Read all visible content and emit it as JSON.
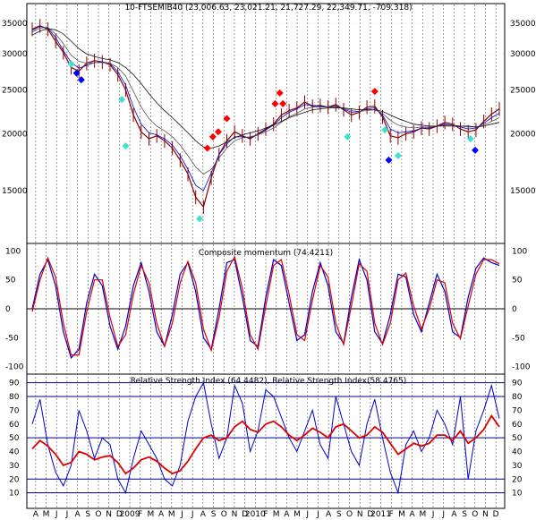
{
  "chart_data": [
    {
      "type": "line",
      "panel": "price",
      "title": "10-FTSEMIB40 (23,006.63, 23,021.21, 21,727.29, 22,349.71, -709.318)",
      "y_scale": "log",
      "ylim": [
        12000,
        37000
      ],
      "y_ticks": [
        "35000",
        "30000",
        "25000",
        "20000",
        "15000"
      ],
      "y_tick_values": [
        35000,
        30000,
        25000,
        20000,
        15000
      ],
      "colors": {
        "bars": "#8b0000",
        "ma_fast": "#0000cc",
        "ma_mid": "#555555",
        "ma_slow": "#111111",
        "diamond_red": "#ff0000",
        "diamond_blue": "#0000ff",
        "diamond_cyan": "#40e0d0"
      },
      "series": [
        {
          "values": [
            34000,
            34600,
            34000,
            32000,
            30200,
            28000,
            27500,
            28600,
            29000,
            28800,
            28400,
            27000,
            25000,
            22000,
            20200,
            19500,
            19800,
            19300,
            18600,
            17500,
            16300,
            14500,
            13800,
            16000,
            18000,
            19300,
            20200,
            19800,
            19500,
            20000,
            20500,
            21000,
            22000,
            22500,
            22800,
            23500,
            23000,
            23100,
            22900,
            23200,
            22600,
            22000,
            22300,
            22900,
            23000,
            21800,
            19800,
            19600,
            20000,
            20200,
            20600,
            20500,
            20800,
            21200,
            21000,
            20500,
            20200,
            20400,
            21300,
            22100,
            22700
          ]
        },
        {
          "values": [
            33800,
            34500,
            34200,
            32600,
            30500,
            28700,
            27900,
            28300,
            28700,
            28800,
            28600,
            27400,
            25600,
            22900,
            21000,
            20100,
            19900,
            19500,
            18900,
            17900,
            16700,
            15400,
            15000,
            16400,
            18000,
            19000,
            19700,
            19700,
            19600,
            19900,
            20400,
            20900,
            21700,
            22300,
            22700,
            23200,
            23100,
            23000,
            22900,
            23000,
            22700,
            22300,
            22400,
            22700,
            22800,
            22000,
            20500,
            20100,
            20200,
            20300,
            20600,
            20600,
            20800,
            21000,
            20900,
            20700,
            20500,
            20600,
            21100,
            21700,
            22200
          ]
        },
        {
          "values": [
            33500,
            34200,
            34300,
            33200,
            31600,
            29800,
            28900,
            28600,
            28700,
            28700,
            28600,
            28000,
            26800,
            24800,
            22900,
            21600,
            20800,
            20300,
            19700,
            18900,
            17900,
            16900,
            16300,
            16700,
            17700,
            18600,
            19300,
            19600,
            19700,
            19900,
            20200,
            20600,
            21200,
            21800,
            22200,
            22700,
            22900,
            22900,
            22900,
            22900,
            22800,
            22500,
            22400,
            22500,
            22600,
            22200,
            21400,
            20900,
            20700,
            20600,
            20700,
            20700,
            20800,
            20900,
            20900,
            20800,
            20700,
            20700,
            20900,
            21300,
            21700
          ]
        },
        {
          "values": [
            33000,
            33700,
            34100,
            33900,
            33200,
            32000,
            30800,
            30000,
            29600,
            29300,
            29100,
            28700,
            28000,
            27000,
            25800,
            24500,
            23400,
            22500,
            21700,
            20900,
            20100,
            19300,
            18700,
            18600,
            18800,
            19200,
            19600,
            19900,
            20100,
            20300,
            20600,
            20900,
            21300,
            21700,
            22000,
            22300,
            22600,
            22700,
            22800,
            22800,
            22800,
            22700,
            22600,
            22600,
            22600,
            22400,
            22000,
            21600,
            21300,
            21000,
            20900,
            20800,
            20800,
            20800,
            20800,
            20800,
            20800,
            20700,
            20800,
            21000,
            21200
          ]
        }
      ],
      "markers": [
        {
          "x": 5,
          "y": 28500,
          "color": "cyan"
        },
        {
          "x": 5.7,
          "y": 27200,
          "color": "blue"
        },
        {
          "x": 6.3,
          "y": 26300,
          "color": "blue"
        },
        {
          "x": 11.5,
          "y": 23800,
          "color": "cyan"
        },
        {
          "x": 12,
          "y": 18800,
          "color": "cyan"
        },
        {
          "x": 22.5,
          "y": 18600,
          "color": "red"
        },
        {
          "x": 23.2,
          "y": 19700,
          "color": "red"
        },
        {
          "x": 23.9,
          "y": 20200,
          "color": "red"
        },
        {
          "x": 25,
          "y": 21600,
          "color": "red"
        },
        {
          "x": 21.5,
          "y": 13000,
          "color": "cyan"
        },
        {
          "x": 31.2,
          "y": 23300,
          "color": "red"
        },
        {
          "x": 31.8,
          "y": 24600,
          "color": "red"
        },
        {
          "x": 32.2,
          "y": 23300,
          "color": "red"
        },
        {
          "x": 40.5,
          "y": 19700,
          "color": "cyan"
        },
        {
          "x": 44,
          "y": 24800,
          "color": "red"
        },
        {
          "x": 45.3,
          "y": 20400,
          "color": "cyan"
        },
        {
          "x": 45.8,
          "y": 17500,
          "color": "blue"
        },
        {
          "x": 47,
          "y": 17900,
          "color": "cyan"
        },
        {
          "x": 56.3,
          "y": 19500,
          "color": "cyan"
        },
        {
          "x": 56.9,
          "y": 18400,
          "color": "blue"
        }
      ]
    },
    {
      "type": "line",
      "panel": "momentum",
      "title": "Composite momentum (74.4211)",
      "ylim": [
        -110,
        110
      ],
      "y_ticks": [
        "100",
        "50",
        "0",
        "-50",
        "-100"
      ],
      "y_tick_values": [
        100,
        50,
        0,
        -50,
        -100
      ],
      "series": [
        {
          "values": [
            0,
            60,
            85,
            40,
            -40,
            -85,
            -70,
            10,
            60,
            40,
            -30,
            -70,
            -30,
            40,
            80,
            30,
            -40,
            -65,
            -10,
            60,
            80,
            30,
            -50,
            -70,
            0,
            80,
            85,
            20,
            -55,
            -65,
            20,
            85,
            75,
            10,
            -55,
            -45,
            30,
            80,
            40,
            -40,
            -60,
            20,
            85,
            50,
            -40,
            -60,
            -10,
            60,
            55,
            -10,
            -40,
            10,
            60,
            30,
            -40,
            -50,
            20,
            70,
            88,
            80,
            75
          ]
        },
        {
          "values": [
            -5,
            50,
            88,
            55,
            -25,
            -80,
            -80,
            -5,
            50,
            50,
            -15,
            -65,
            -45,
            25,
            75,
            45,
            -25,
            -65,
            -25,
            45,
            82,
            45,
            -35,
            -72,
            -15,
            65,
            90,
            35,
            -45,
            -70,
            5,
            75,
            85,
            25,
            -45,
            -55,
            15,
            75,
            55,
            -25,
            -62,
            5,
            78,
            65,
            -25,
            -62,
            -25,
            50,
            62,
            5,
            -35,
            0,
            50,
            45,
            -25,
            -52,
            5,
            60,
            85,
            85,
            78
          ]
        }
      ]
    },
    {
      "type": "line",
      "panel": "rsi",
      "title": "Relative Strength Index (64.4482), Relative Strength Index(58.4765)",
      "ylim": [
        0,
        95
      ],
      "y_ticks": [
        "90",
        "80",
        "70",
        "60",
        "50",
        "40",
        "30",
        "20",
        "10"
      ],
      "y_tick_values": [
        90,
        80,
        70,
        60,
        50,
        40,
        30,
        20,
        10
      ],
      "series": [
        {
          "values": [
            60,
            78,
            45,
            25,
            15,
            30,
            70,
            55,
            35,
            50,
            45,
            20,
            10,
            35,
            55,
            45,
            35,
            20,
            15,
            30,
            62,
            80,
            90,
            60,
            35,
            50,
            88,
            75,
            40,
            55,
            85,
            80,
            65,
            50,
            40,
            55,
            70,
            45,
            35,
            80,
            60,
            40,
            30,
            60,
            78,
            50,
            25,
            10,
            45,
            55,
            40,
            50,
            70,
            60,
            45,
            80,
            20,
            55,
            70,
            88,
            64
          ]
        },
        {
          "values": [
            42,
            48,
            44,
            38,
            30,
            32,
            40,
            38,
            34,
            36,
            37,
            32,
            24,
            28,
            34,
            36,
            33,
            28,
            24,
            26,
            33,
            42,
            50,
            52,
            48,
            50,
            58,
            62,
            56,
            54,
            60,
            62,
            58,
            52,
            48,
            52,
            57,
            54,
            50,
            58,
            60,
            55,
            50,
            52,
            58,
            54,
            46,
            38,
            42,
            46,
            44,
            46,
            52,
            52,
            48,
            55,
            46,
            50,
            56,
            66,
            58
          ]
        }
      ]
    }
  ],
  "x_axis": {
    "labels": [
      "A",
      "M",
      "J",
      "J",
      "A",
      "S",
      "O",
      "N",
      "D",
      "2009",
      "F",
      "M",
      "A",
      "M",
      "J",
      "J",
      "A",
      "S",
      "O",
      "N",
      "D",
      "2010",
      "F",
      "M",
      "A",
      "M",
      "J",
      "J",
      "A",
      "S",
      "O",
      "N",
      "D",
      "2011",
      "F",
      "M",
      "A",
      "M",
      "J",
      "J",
      "A",
      "S",
      "O",
      "N",
      "D"
    ]
  }
}
